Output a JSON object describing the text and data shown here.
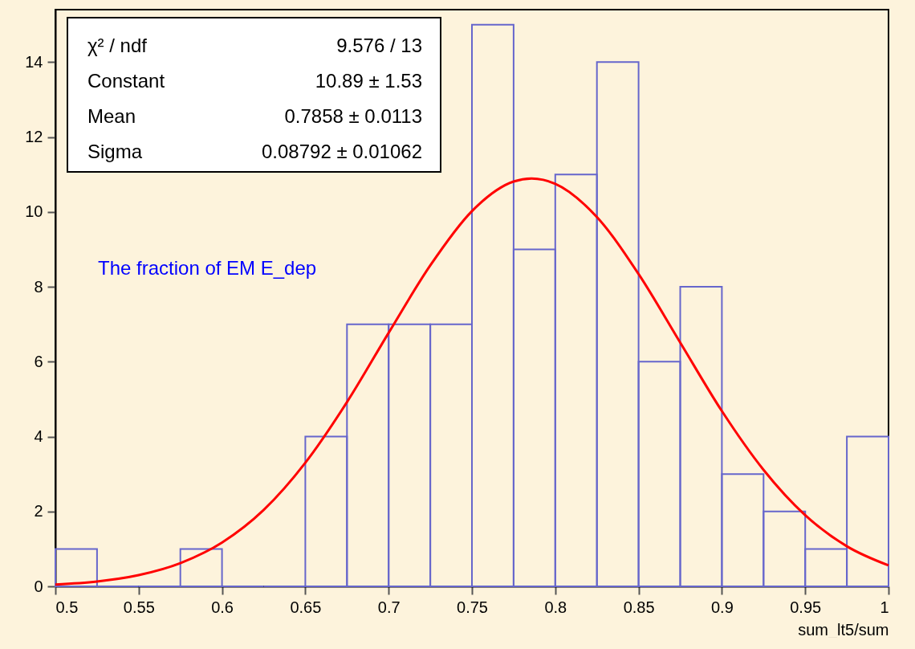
{
  "chart_data": {
    "type": "histogram",
    "xlabel": "sum_lt5/sum",
    "bins": [
      0.5,
      0.525,
      0.55,
      0.575,
      0.6,
      0.625,
      0.65,
      0.675,
      0.7,
      0.725,
      0.75,
      0.775,
      0.8,
      0.825,
      0.85,
      0.875,
      0.9,
      0.925,
      0.95,
      0.975,
      1.0
    ],
    "series": [
      {
        "color": "#6666cc",
        "values": [
          1,
          0,
          0,
          1,
          0,
          0,
          4,
          7,
          7,
          7,
          15,
          9,
          11,
          14,
          6,
          8,
          3,
          2,
          1,
          4
        ]
      },
      {
        "type": "line",
        "color": "#ff0000",
        "x": [
          0.5,
          0.525,
          0.55,
          0.575,
          0.6,
          0.625,
          0.65,
          0.675,
          0.7,
          0.725,
          0.75,
          0.775,
          0.7858,
          0.8,
          0.825,
          0.85,
          0.875,
          0.9,
          0.925,
          0.95,
          0.975,
          1.0
        ],
        "values": [
          0.05,
          0.13,
          0.3,
          0.62,
          1.17,
          2.04,
          3.3,
          4.92,
          6.77,
          8.57,
          10.02,
          10.81,
          10.89,
          10.75,
          9.86,
          8.34,
          6.51,
          4.68,
          3.11,
          1.9,
          1.07,
          0.56
        ]
      }
    ],
    "xlim": [
      0.5,
      1.0
    ],
    "xticks": [
      0.5,
      0.55,
      0.6,
      0.65,
      0.7,
      0.75,
      0.8,
      0.85,
      0.9,
      0.95,
      1
    ],
    "ylim": [
      0,
      15.4
    ],
    "yticks": [
      0,
      2,
      4,
      6,
      8,
      10,
      12,
      14
    ],
    "grid": false,
    "annotations": [
      "χ² / ndf",
      "9.576 / 13",
      "Constant",
      "10.89 ± 1.53",
      "Mean",
      "0.7858 ± 0.0113",
      "Sigma",
      "0.08792 ± 0.01062",
      "The fraction of EM E_dep"
    ]
  }
}
